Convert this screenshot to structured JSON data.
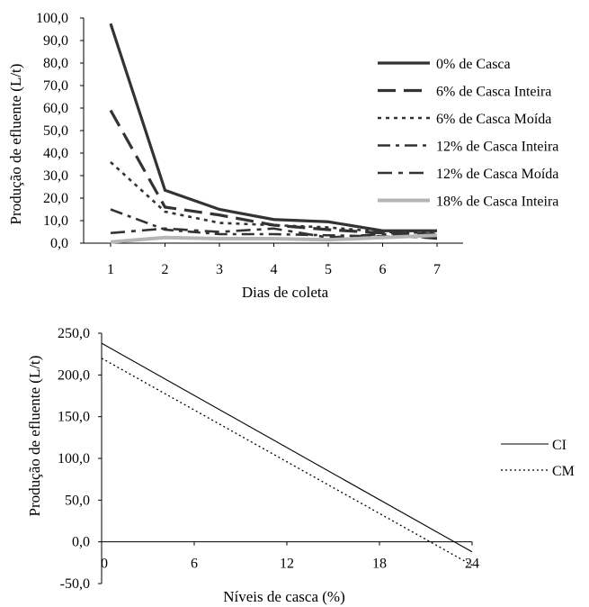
{
  "chart_data": [
    {
      "type": "line",
      "title": "",
      "xlabel": "Dias de coleta",
      "ylabel": "Produção de efluente (L/t)",
      "categories": [
        "1",
        "2",
        "3",
        "4",
        "5",
        "6",
        "7"
      ],
      "y_ticks": [
        "0,0",
        "10,0",
        "20,0",
        "30,0",
        "40,0",
        "50,0",
        "60,0",
        "70,0",
        "80,0",
        "90,0",
        "100,0"
      ],
      "ylim": [
        0,
        100
      ],
      "grid": false,
      "legend_position": "right",
      "series": [
        {
          "name": "0% de Casca",
          "style": "solid-thick",
          "color": "#333333",
          "values": [
            97.5,
            23.5,
            15.0,
            10.5,
            9.5,
            5.5,
            5.5
          ]
        },
        {
          "name": "6% de Casca Inteira",
          "style": "long-dash",
          "color": "#333333",
          "values": [
            59.0,
            16.0,
            12.5,
            8.0,
            6.0,
            4.5,
            4.0
          ]
        },
        {
          "name": "6% de Casca Moída",
          "style": "dotted",
          "color": "#333333",
          "values": [
            36.0,
            14.0,
            9.0,
            8.0,
            7.0,
            5.0,
            4.5
          ]
        },
        {
          "name": "12% de Casca Inteira",
          "style": "dash-dot",
          "color": "#333333",
          "values": [
            15.0,
            6.0,
            4.0,
            4.0,
            3.5,
            3.0,
            2.5
          ]
        },
        {
          "name": "12% de Casca Moída",
          "style": "dash-dot-2",
          "color": "#333333",
          "values": [
            4.5,
            6.5,
            5.0,
            6.5,
            2.5,
            4.0,
            2.0
          ]
        },
        {
          "name": "18% de Casca Inteira",
          "style": "thick-gray",
          "color": "#b5b5b5",
          "values": [
            0.5,
            2.5,
            2.0,
            2.0,
            1.5,
            2.5,
            3.5
          ]
        }
      ]
    },
    {
      "type": "line",
      "title": "",
      "xlabel": "Níveis de casca  (%)",
      "ylabel": "Produção de efluente (L/t)",
      "x_ticks": [
        "0",
        "6",
        "12",
        "18",
        "24"
      ],
      "y_ticks": [
        "-50,0",
        "0,0",
        "50,0",
        "100,0",
        "150,0",
        "200,0",
        "250,0"
      ],
      "xlim": [
        0,
        24
      ],
      "ylim": [
        -50,
        250
      ],
      "grid": false,
      "legend_position": "right",
      "series": [
        {
          "name": "CI",
          "style": "solid-thin",
          "color": "#000000",
          "x": [
            0,
            24
          ],
          "y": [
            238,
            -12
          ]
        },
        {
          "name": "CM",
          "style": "dotted-thin",
          "color": "#000000",
          "x": [
            0,
            24
          ],
          "y": [
            220,
            -28
          ]
        }
      ]
    }
  ]
}
